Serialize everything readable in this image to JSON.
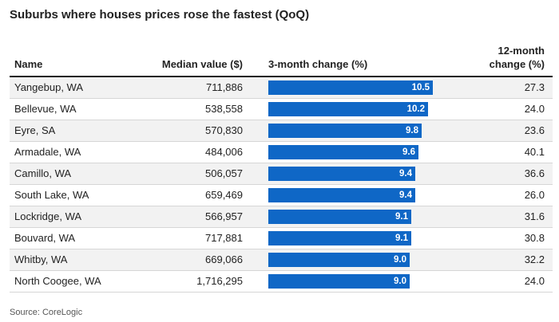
{
  "chart_data": {
    "type": "table",
    "title": "Suburbs where houses prices rose the fastest (QoQ)",
    "columns": [
      "Name",
      "Median value ($)",
      "3-month change (%)",
      "12-month change (%)"
    ],
    "rows": [
      {
        "name": "Yangebup, WA",
        "median": "711,886",
        "three_month": 10.5,
        "three_month_label": "10.5",
        "twelve_month": "27.3"
      },
      {
        "name": "Bellevue, WA",
        "median": "538,558",
        "three_month": 10.2,
        "three_month_label": "10.2",
        "twelve_month": "24.0"
      },
      {
        "name": "Eyre, SA",
        "median": "570,830",
        "three_month": 9.8,
        "three_month_label": "9.8",
        "twelve_month": "23.6"
      },
      {
        "name": "Armadale, WA",
        "median": "484,006",
        "three_month": 9.6,
        "three_month_label": "9.6",
        "twelve_month": "40.1"
      },
      {
        "name": "Camillo, WA",
        "median": "506,057",
        "three_month": 9.4,
        "three_month_label": "9.4",
        "twelve_month": "36.6"
      },
      {
        "name": "South Lake, WA",
        "median": "659,469",
        "three_month": 9.4,
        "three_month_label": "9.4",
        "twelve_month": "26.0"
      },
      {
        "name": "Lockridge, WA",
        "median": "566,957",
        "three_month": 9.1,
        "three_month_label": "9.1",
        "twelve_month": "31.6"
      },
      {
        "name": "Bouvard, WA",
        "median": "717,881",
        "three_month": 9.1,
        "three_month_label": "9.1",
        "twelve_month": "30.8"
      },
      {
        "name": "Whitby, WA",
        "median": "669,066",
        "three_month": 9.0,
        "three_month_label": "9.0",
        "twelve_month": "32.2"
      },
      {
        "name": "North Coogee, WA",
        "median": "1,716,295",
        "three_month": 9.0,
        "three_month_label": "9.0",
        "twelve_month": "24.0"
      }
    ],
    "bar_color": "#0f67c6",
    "source": "Source: CoreLogic"
  },
  "headers": {
    "name": "Name",
    "median": "Median value ($)",
    "three_month": "3-month change (%)",
    "twelve_month_line1": "12-month",
    "twelve_month_line2": "change (%)"
  }
}
